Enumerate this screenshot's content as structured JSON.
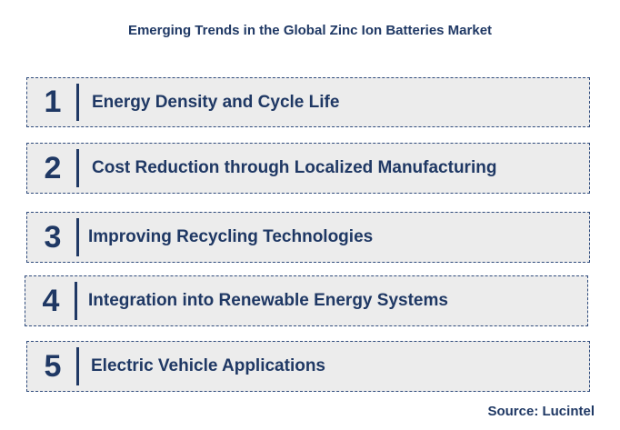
{
  "title": "Emerging Trends in the Global Zinc Ion Batteries Market",
  "trends": [
    {
      "number": "1",
      "label": "Energy Density and Cycle Life"
    },
    {
      "number": "2",
      "label": "Cost Reduction through Localized Manufacturing"
    },
    {
      "number": "3",
      "label": "Improving Recycling Technologies"
    },
    {
      "number": "4",
      "label": "Integration into Renewable Energy Systems"
    },
    {
      "number": "5",
      "label": "Electric Vehicle Applications"
    }
  ],
  "source": "Source: Lucintel",
  "colors": {
    "text": "#1f3864",
    "box_fill": "#ececec",
    "box_border": "#2f4b7c"
  }
}
